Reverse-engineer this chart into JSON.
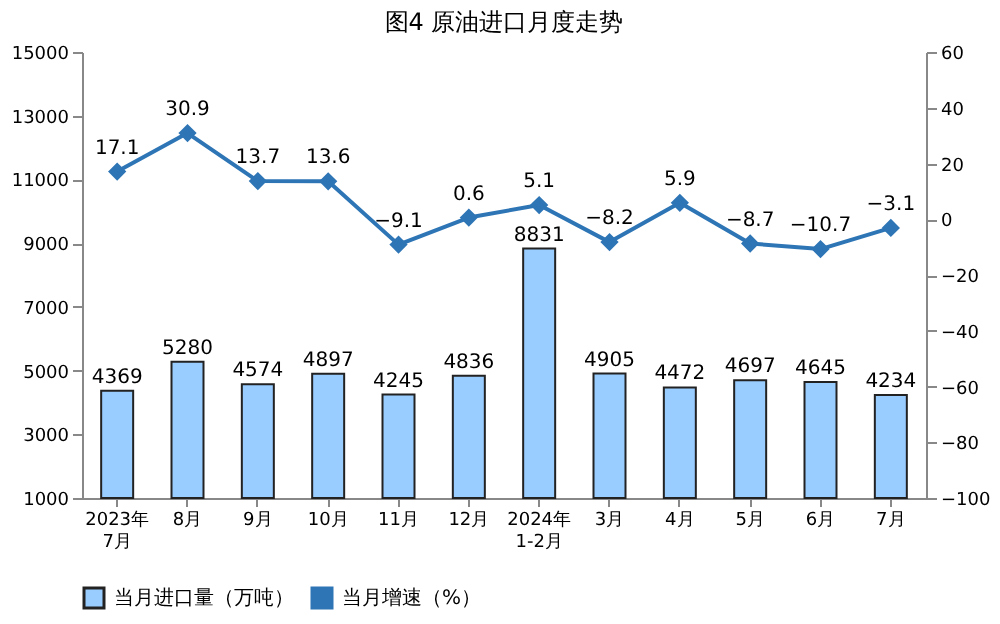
{
  "chart_data": {
    "type": "bar",
    "title": "图4  原油进口月度走势",
    "categories": [
      "2023年\n7月",
      "8月",
      "9月",
      "10月",
      "11月",
      "12月",
      "2024年\n1-2月",
      "3月",
      "4月",
      "5月",
      "6月",
      "7月"
    ],
    "series": [
      {
        "name": "当月进口量（万吨）",
        "color": "#99ccff",
        "values": [
          4369,
          5280,
          4574,
          4897,
          4245,
          4836,
          8831,
          4905,
          4472,
          4697,
          4645,
          4234
        ]
      },
      {
        "name": "当月增速（%）",
        "type": "line",
        "axis": "y2",
        "color": "#2e75b6",
        "marker": "diamond",
        "values": [
          17.1,
          30.9,
          13.7,
          13.6,
          -9.1,
          0.6,
          5.1,
          -8.2,
          5.9,
          -8.7,
          -10.7,
          -3.1
        ]
      }
    ],
    "ylim": [
      1000,
      15000
    ],
    "yticks": [
      1000,
      3000,
      5000,
      7000,
      9000,
      11000,
      13000,
      15000
    ],
    "y2lim": [
      -100,
      60
    ],
    "y2ticks": [
      -100,
      -80,
      -60,
      -40,
      -20,
      0,
      20,
      40,
      60
    ],
    "data_labels": true,
    "grid": false,
    "legend": "bottom"
  }
}
